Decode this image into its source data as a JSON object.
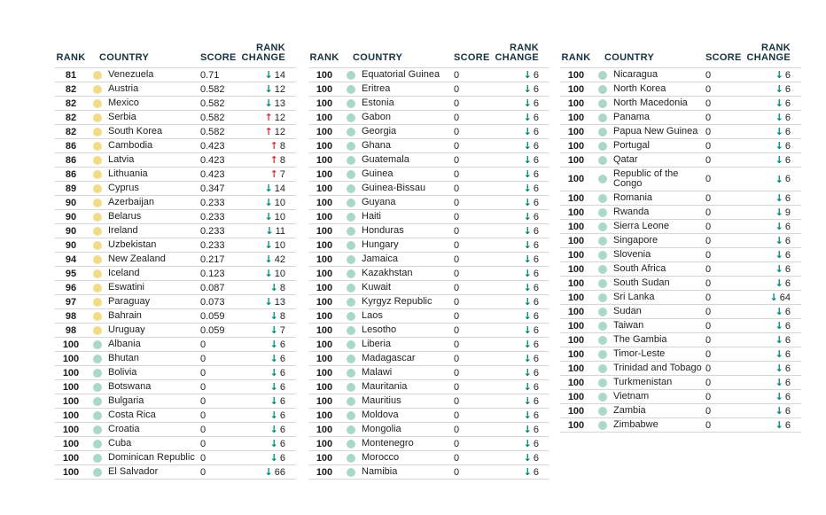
{
  "headers": {
    "rank": "RANK",
    "country": "COUNTRY",
    "score": "SCORE",
    "rank_change": "RANK CHANGE"
  },
  "icons": {
    "down_arrow": "↓",
    "up_arrow": "↑"
  },
  "colors": {
    "header_text": "#16313f",
    "body_text": "#222222",
    "separator": "#d6d6d6",
    "yellow_dot": "#f4db88",
    "teal_dot": "#abd8c6",
    "down_arrow": "#00857b",
    "up_arrow": "#c53a42"
  },
  "row_fields": [
    "rank",
    "country",
    "score",
    "change_direction",
    "change_value",
    "dot_color",
    "wrap_flag_optional"
  ],
  "tables": [
    {
      "rows": [
        [
          "81",
          "Venezuela",
          "0.71",
          "down",
          "14",
          "yellow"
        ],
        [
          "82",
          "Austria",
          "0.582",
          "down",
          "12",
          "yellow"
        ],
        [
          "82",
          "Mexico",
          "0.582",
          "down",
          "13",
          "yellow"
        ],
        [
          "82",
          "Serbia",
          "0.582",
          "up",
          "12",
          "yellow"
        ],
        [
          "82",
          "South Korea",
          "0.582",
          "up",
          "12",
          "yellow"
        ],
        [
          "86",
          "Cambodia",
          "0.423",
          "up",
          "8",
          "yellow"
        ],
        [
          "86",
          "Latvia",
          "0.423",
          "up",
          "8",
          "yellow"
        ],
        [
          "86",
          "Lithuania",
          "0.423",
          "up",
          "7",
          "yellow"
        ],
        [
          "89",
          "Cyprus",
          "0.347",
          "down",
          "14",
          "yellow"
        ],
        [
          "90",
          "Azerbaijan",
          "0.233",
          "down",
          "10",
          "yellow"
        ],
        [
          "90",
          "Belarus",
          "0.233",
          "down",
          "10",
          "yellow"
        ],
        [
          "90",
          "Ireland",
          "0.233",
          "down",
          "11",
          "yellow"
        ],
        [
          "90",
          "Uzbekistan",
          "0.233",
          "down",
          "10",
          "yellow"
        ],
        [
          "94",
          "New Zealand",
          "0.217",
          "down",
          "42",
          "yellow"
        ],
        [
          "95",
          "Iceland",
          "0.123",
          "down",
          "10",
          "yellow"
        ],
        [
          "96",
          "Eswatini",
          "0.087",
          "down",
          "8",
          "yellow"
        ],
        [
          "97",
          "Paraguay",
          "0.073",
          "down",
          "13",
          "yellow"
        ],
        [
          "98",
          "Bahrain",
          "0.059",
          "down",
          "8",
          "yellow"
        ],
        [
          "98",
          "Uruguay",
          "0.059",
          "down",
          "7",
          "yellow"
        ],
        [
          "100",
          "Albania",
          "0",
          "down",
          "6",
          "teal"
        ],
        [
          "100",
          "Bhutan",
          "0",
          "down",
          "6",
          "teal"
        ],
        [
          "100",
          "Bolivia",
          "0",
          "down",
          "6",
          "teal"
        ],
        [
          "100",
          "Botswana",
          "0",
          "down",
          "6",
          "teal"
        ],
        [
          "100",
          "Bulgaria",
          "0",
          "down",
          "6",
          "teal"
        ],
        [
          "100",
          "Costa Rica",
          "0",
          "down",
          "6",
          "teal"
        ],
        [
          "100",
          "Croatia",
          "0",
          "down",
          "6",
          "teal"
        ],
        [
          "100",
          "Cuba",
          "0",
          "down",
          "6",
          "teal"
        ],
        [
          "100",
          "Dominican Republic",
          "0",
          "down",
          "6",
          "teal"
        ],
        [
          "100",
          "El Salvador",
          "0",
          "down",
          "66",
          "teal"
        ]
      ]
    },
    {
      "rows": [
        [
          "100",
          "Equatorial Guinea",
          "0",
          "down",
          "6",
          "teal"
        ],
        [
          "100",
          "Eritrea",
          "0",
          "down",
          "6",
          "teal"
        ],
        [
          "100",
          "Estonia",
          "0",
          "down",
          "6",
          "teal"
        ],
        [
          "100",
          "Gabon",
          "0",
          "down",
          "6",
          "teal"
        ],
        [
          "100",
          "Georgia",
          "0",
          "down",
          "6",
          "teal"
        ],
        [
          "100",
          "Ghana",
          "0",
          "down",
          "6",
          "teal"
        ],
        [
          "100",
          "Guatemala",
          "0",
          "down",
          "6",
          "teal"
        ],
        [
          "100",
          "Guinea",
          "0",
          "down",
          "6",
          "teal"
        ],
        [
          "100",
          "Guinea-Bissau",
          "0",
          "down",
          "6",
          "teal"
        ],
        [
          "100",
          "Guyana",
          "0",
          "down",
          "6",
          "teal"
        ],
        [
          "100",
          "Haiti",
          "0",
          "down",
          "6",
          "teal"
        ],
        [
          "100",
          "Honduras",
          "0",
          "down",
          "6",
          "teal"
        ],
        [
          "100",
          "Hungary",
          "0",
          "down",
          "6",
          "teal"
        ],
        [
          "100",
          "Jamaica",
          "0",
          "down",
          "6",
          "teal"
        ],
        [
          "100",
          "Kazakhstan",
          "0",
          "down",
          "6",
          "teal"
        ],
        [
          "100",
          "Kuwait",
          "0",
          "down",
          "6",
          "teal"
        ],
        [
          "100",
          "Kyrgyz Republic",
          "0",
          "down",
          "6",
          "teal"
        ],
        [
          "100",
          "Laos",
          "0",
          "down",
          "6",
          "teal"
        ],
        [
          "100",
          "Lesotho",
          "0",
          "down",
          "6",
          "teal"
        ],
        [
          "100",
          "Liberia",
          "0",
          "down",
          "6",
          "teal"
        ],
        [
          "100",
          "Madagascar",
          "0",
          "down",
          "6",
          "teal"
        ],
        [
          "100",
          "Malawi",
          "0",
          "down",
          "6",
          "teal"
        ],
        [
          "100",
          "Mauritania",
          "0",
          "down",
          "6",
          "teal"
        ],
        [
          "100",
          "Mauritius",
          "0",
          "down",
          "6",
          "teal"
        ],
        [
          "100",
          "Moldova",
          "0",
          "down",
          "6",
          "teal"
        ],
        [
          "100",
          "Mongolia",
          "0",
          "down",
          "6",
          "teal"
        ],
        [
          "100",
          "Montenegro",
          "0",
          "down",
          "6",
          "teal"
        ],
        [
          "100",
          "Morocco",
          "0",
          "down",
          "6",
          "teal"
        ],
        [
          "100",
          "Namibia",
          "0",
          "down",
          "6",
          "teal"
        ]
      ]
    },
    {
      "rows": [
        [
          "100",
          "Nicaragua",
          "0",
          "down",
          "6",
          "teal"
        ],
        [
          "100",
          "North Korea",
          "0",
          "down",
          "6",
          "teal"
        ],
        [
          "100",
          "North Macedonia",
          "0",
          "down",
          "6",
          "teal"
        ],
        [
          "100",
          "Panama",
          "0",
          "down",
          "6",
          "teal"
        ],
        [
          "100",
          "Papua New Guinea",
          "0",
          "down",
          "6",
          "teal"
        ],
        [
          "100",
          "Portugal",
          "0",
          "down",
          "6",
          "teal"
        ],
        [
          "100",
          "Qatar",
          "0",
          "down",
          "6",
          "teal"
        ],
        [
          "100",
          "Republic of the Congo",
          "0",
          "down",
          "6",
          "teal",
          "wrap"
        ],
        [
          "100",
          "Romania",
          "0",
          "down",
          "6",
          "teal"
        ],
        [
          "100",
          "Rwanda",
          "0",
          "down",
          "9",
          "teal"
        ],
        [
          "100",
          "Sierra Leone",
          "0",
          "down",
          "6",
          "teal"
        ],
        [
          "100",
          "Singapore",
          "0",
          "down",
          "6",
          "teal"
        ],
        [
          "100",
          "Slovenia",
          "0",
          "down",
          "6",
          "teal"
        ],
        [
          "100",
          "South Africa",
          "0",
          "down",
          "6",
          "teal"
        ],
        [
          "100",
          "South Sudan",
          "0",
          "down",
          "6",
          "teal"
        ],
        [
          "100",
          "Sri Lanka",
          "0",
          "down",
          "64",
          "teal"
        ],
        [
          "100",
          "Sudan",
          "0",
          "down",
          "6",
          "teal"
        ],
        [
          "100",
          "Taiwan",
          "0",
          "down",
          "6",
          "teal"
        ],
        [
          "100",
          "The Gambia",
          "0",
          "down",
          "6",
          "teal"
        ],
        [
          "100",
          "Timor-Leste",
          "0",
          "down",
          "6",
          "teal"
        ],
        [
          "100",
          "Trinidad and Tobago",
          "0",
          "down",
          "6",
          "teal"
        ],
        [
          "100",
          "Turkmenistan",
          "0",
          "down",
          "6",
          "teal"
        ],
        [
          "100",
          "Vietnam",
          "0",
          "down",
          "6",
          "teal"
        ],
        [
          "100",
          "Zambia",
          "0",
          "down",
          "6",
          "teal"
        ],
        [
          "100",
          "Zimbabwe",
          "0",
          "down",
          "6",
          "teal"
        ]
      ]
    }
  ]
}
